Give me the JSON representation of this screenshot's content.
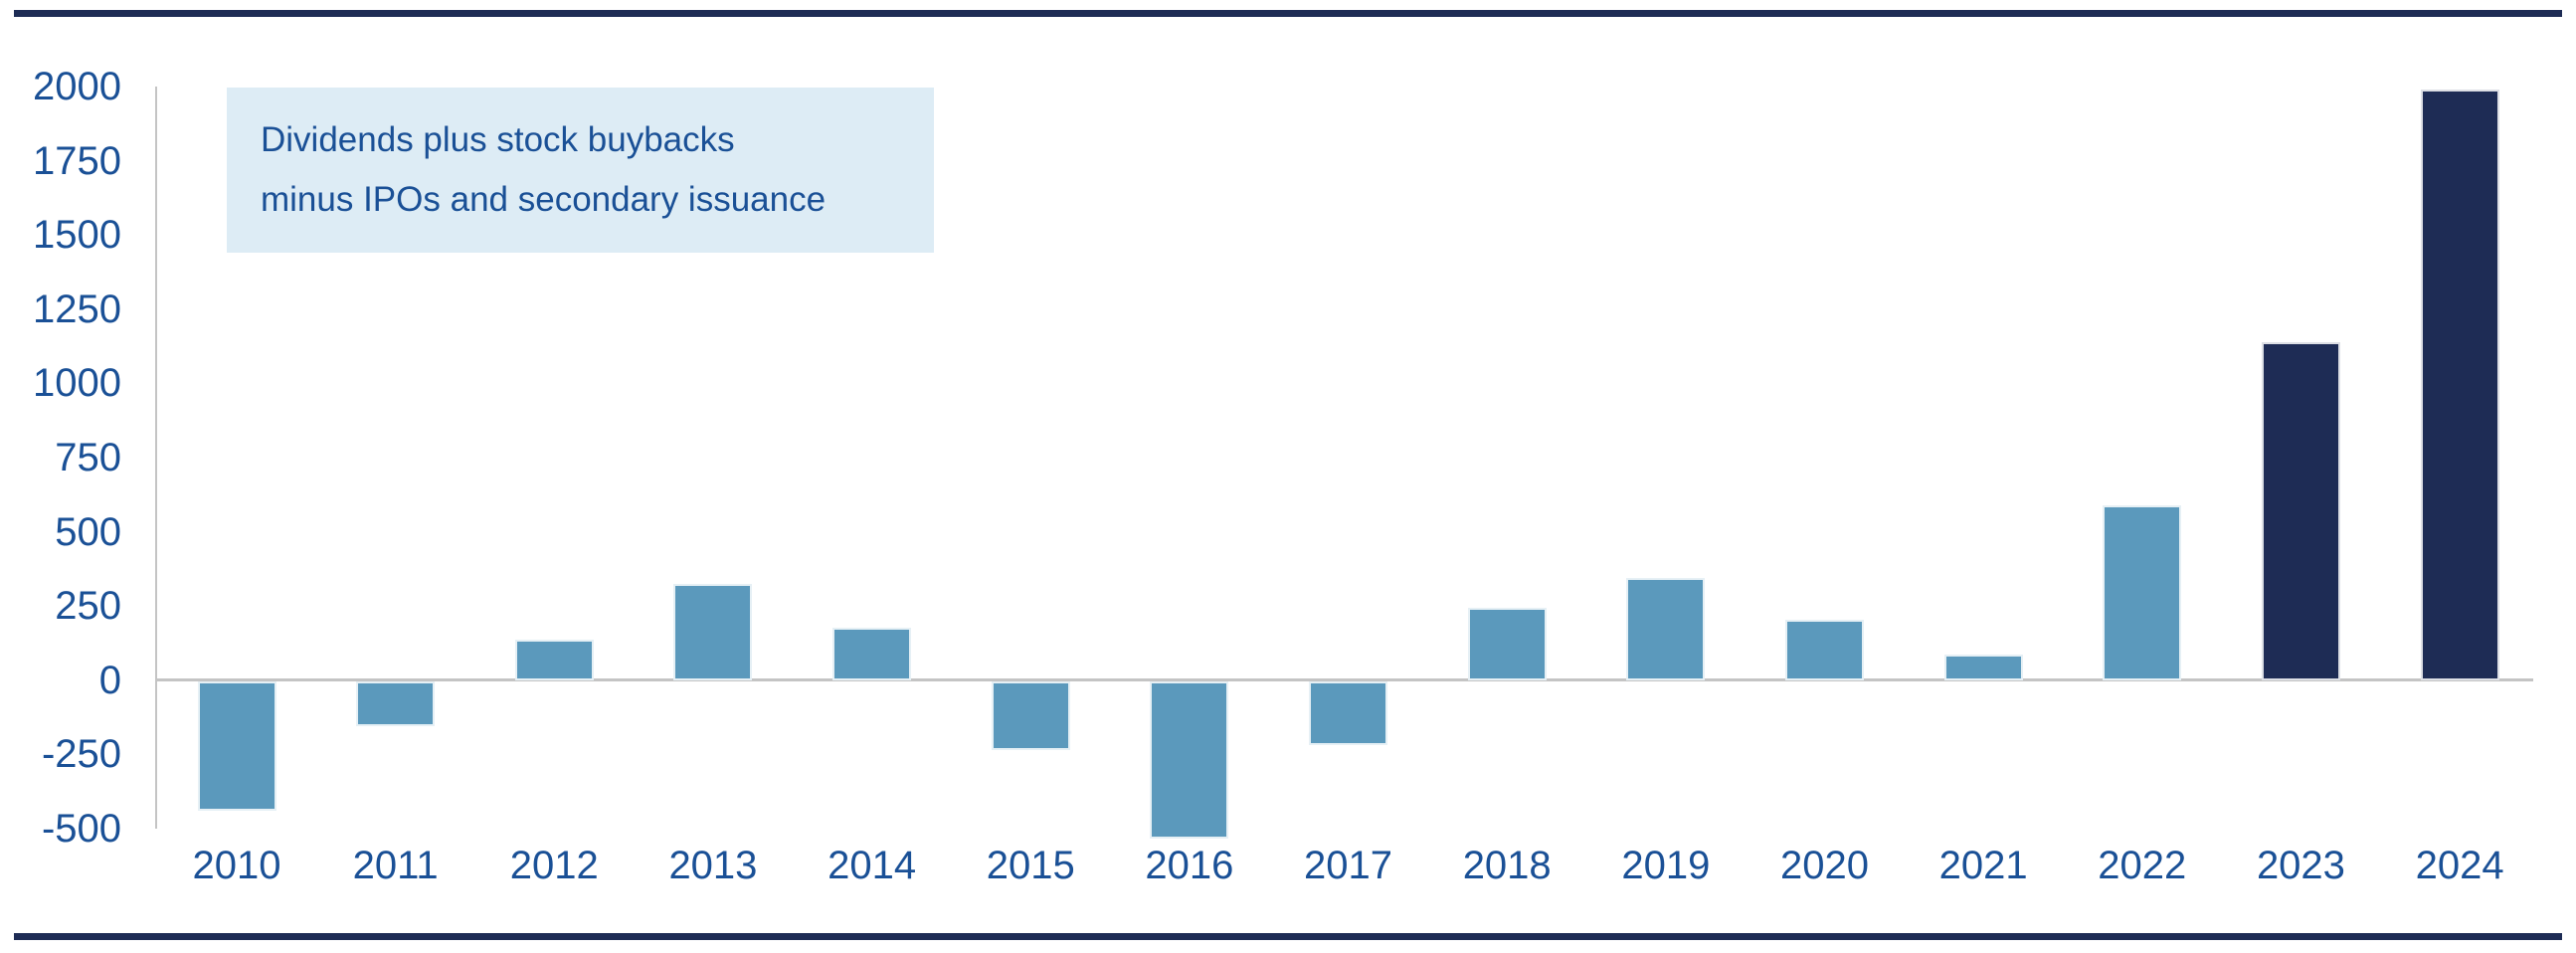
{
  "page": {
    "background": "#ffffff",
    "rule_color": "#1E2C55"
  },
  "annotation": {
    "line1": "Dividends plus stock buybacks",
    "line2": "minus IPOs and secondary issuance",
    "bg_color": "#DDECF5",
    "text_color": "#1A5096"
  },
  "axis": {
    "label_color": "#1A5096",
    "line_color": "#C4C4C4",
    "y_tick_values": [
      2000,
      1750,
      1500,
      1250,
      1000,
      750,
      500,
      250,
      0,
      -250,
      -500
    ],
    "y_tick_labels": [
      "2000",
      "1750",
      "1500",
      "1250",
      "1000",
      "750",
      "500",
      "250",
      "0",
      "-250",
      "-500"
    ]
  },
  "chart_data": {
    "type": "bar",
    "title": "",
    "xlabel": "",
    "ylabel": "",
    "categories": [
      "2010",
      "2011",
      "2012",
      "2013",
      "2014",
      "2015",
      "2016",
      "2017",
      "2018",
      "2019",
      "2020",
      "2021",
      "2022",
      "2023",
      "2024"
    ],
    "values": [
      -435,
      -150,
      135,
      325,
      175,
      -230,
      -530,
      -215,
      245,
      345,
      205,
      85,
      590,
      1140,
      1990
    ],
    "ylim": [
      -550,
      2000
    ],
    "grid": "off",
    "legend": "none",
    "annotation": "Dividends plus stock buybacks minus IPOs and secondary issuance",
    "bar_color_default": "#5B99BC",
    "bar_color_highlight": "#1E2C55",
    "highlight_categories": [
      "2023",
      "2024"
    ]
  }
}
